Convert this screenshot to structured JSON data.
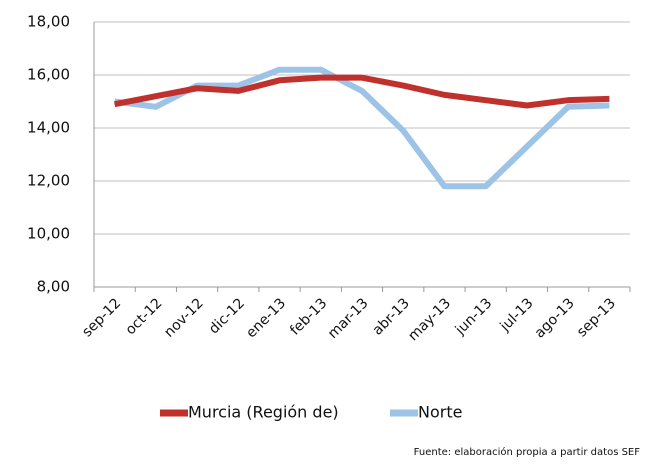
{
  "chart_data": {
    "type": "line",
    "categories": [
      "sep-12",
      "oct-12",
      "nov-12",
      "dic-12",
      "ene-13",
      "feb-13",
      "mar-13",
      "abr-13",
      "may-13",
      "jun-13",
      "jul-13",
      "ago-13",
      "sep-13"
    ],
    "series": [
      {
        "name": "Murcia (Región de)",
        "color": "#c0312e",
        "values": [
          14.9,
          15.2,
          15.5,
          15.4,
          15.8,
          15.9,
          15.9,
          15.6,
          15.25,
          15.05,
          14.85,
          15.05,
          15.1
        ]
      },
      {
        "name": "Norte",
        "color": "#9dc3e6",
        "values": [
          15.0,
          14.8,
          15.6,
          15.6,
          16.2,
          16.2,
          15.4,
          13.9,
          11.8,
          11.8,
          13.3,
          14.8,
          14.85
        ]
      }
    ],
    "ylim": [
      8,
      18
    ],
    "yticks": [
      {
        "value": 8,
        "label": "8,00"
      },
      {
        "value": 10,
        "label": "10,00"
      },
      {
        "value": 12,
        "label": "12,00"
      },
      {
        "value": 14,
        "label": "14,00"
      },
      {
        "value": 16,
        "label": "16,00"
      },
      {
        "value": 18,
        "label": "18,00"
      }
    ],
    "grid": true,
    "legend": "bottom",
    "source": "Fuente: elaboración propia a partir datos SEF"
  }
}
